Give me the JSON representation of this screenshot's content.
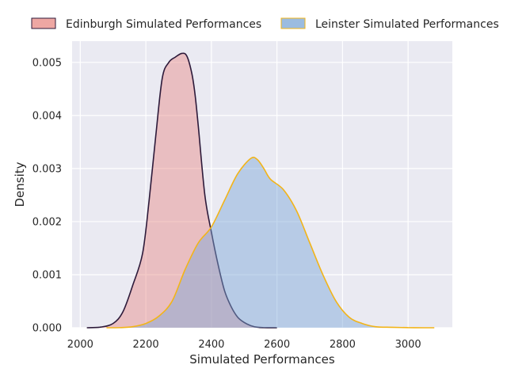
{
  "chart_data": {
    "type": "area",
    "title": "",
    "xlabel": "Simulated Performances",
    "ylabel": "Density",
    "xlim": [
      1975,
      3135
    ],
    "ylim": [
      0,
      0.0054
    ],
    "xticks": [
      2000,
      2200,
      2400,
      2600,
      2800,
      3000
    ],
    "xtick_labels": [
      "2000",
      "2200",
      "2400",
      "2600",
      "2800",
      "3000"
    ],
    "yticks": [
      0,
      0.001,
      0.002,
      0.003,
      0.004,
      0.005
    ],
    "ytick_labels": [
      "0.000",
      "0.001",
      "0.002",
      "0.003",
      "0.004",
      "0.005"
    ],
    "grid": true,
    "legend_position": "top, above plot",
    "series": [
      {
        "name": "Edinburgh Simulated Performances",
        "fill_color": "#e88a84",
        "line_color": "#2d1a3a",
        "x": [
          2020,
          2060,
          2100,
          2130,
          2160,
          2190,
          2210,
          2230,
          2250,
          2270,
          2290,
          2310,
          2325,
          2340,
          2350,
          2360,
          2380,
          2400,
          2420,
          2440,
          2460,
          2480,
          2500,
          2520,
          2540,
          2560,
          2600
        ],
        "y": [
          0,
          1e-05,
          8e-05,
          0.0003,
          0.0008,
          0.0014,
          0.0024,
          0.0036,
          0.0047,
          0.005,
          0.0051,
          0.00517,
          0.00512,
          0.0048,
          0.0044,
          0.0038,
          0.0025,
          0.0018,
          0.0012,
          0.0007,
          0.0004,
          0.0002,
          0.0001,
          4e-05,
          1e-05,
          2e-06,
          0
        ]
      },
      {
        "name": "Leinster Simulated Performances",
        "fill_color": "#7aa6d6",
        "line_color": "#f2b418",
        "x": [
          2080,
          2120,
          2160,
          2200,
          2240,
          2280,
          2320,
          2360,
          2400,
          2440,
          2480,
          2520,
          2540,
          2560,
          2580,
          2620,
          2660,
          2700,
          2740,
          2780,
          2820,
          2860,
          2900,
          2950,
          3000,
          3050,
          3080
        ],
        "y": [
          0,
          2e-06,
          2e-05,
          8e-05,
          0.00022,
          0.0005,
          0.0011,
          0.0016,
          0.0019,
          0.0024,
          0.0029,
          0.00319,
          0.00317,
          0.003,
          0.0028,
          0.0026,
          0.0022,
          0.0016,
          0.001,
          0.0005,
          0.0002,
          8e-05,
          2e-05,
          8e-06,
          2e-06,
          0,
          0
        ]
      }
    ]
  }
}
